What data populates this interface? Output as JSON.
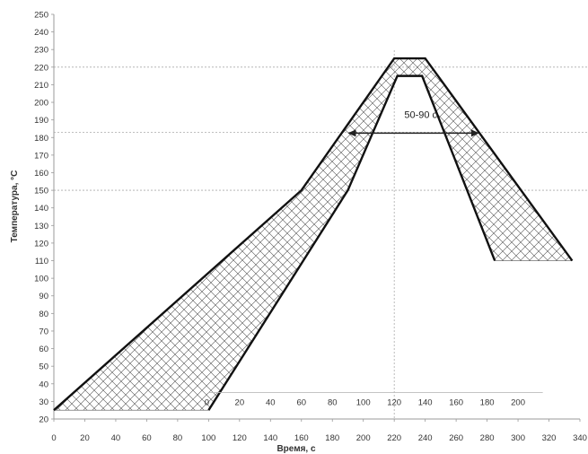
{
  "chart_data": {
    "type": "area",
    "title": "",
    "xlabel": "Время, с",
    "ylabel": "Температура, °С",
    "xlim": [
      0,
      340
    ],
    "ylim": [
      20,
      250
    ],
    "x_ticks": [
      0,
      20,
      40,
      60,
      80,
      100,
      120,
      140,
      160,
      180,
      200,
      220,
      240,
      260,
      280,
      300,
      320,
      340
    ],
    "y_ticks": [
      20,
      30,
      40,
      50,
      60,
      70,
      80,
      90,
      100,
      110,
      120,
      130,
      140,
      150,
      160,
      170,
      180,
      190,
      200,
      210,
      220,
      230,
      240,
      250
    ],
    "series": [
      {
        "role": "upper-boundary",
        "points": [
          [
            0,
            25
          ],
          [
            160,
            150
          ],
          [
            220,
            225
          ],
          [
            240,
            225
          ],
          [
            335,
            110
          ]
        ]
      },
      {
        "role": "lower-boundary",
        "points": [
          [
            100,
            25
          ],
          [
            190,
            150
          ],
          [
            222,
            215
          ],
          [
            238,
            215
          ],
          [
            285,
            110
          ]
        ]
      }
    ],
    "reference_lines": {
      "horizontal": [
        220,
        183,
        150
      ],
      "vertical": [
        220
      ]
    },
    "annotation": {
      "text": "50-90 с",
      "y": 183,
      "x_from": 190,
      "x_to": 275
    },
    "inset_axis": {
      "x_start": 100,
      "x_end": 316,
      "x_offset": 100,
      "ticks": [
        "0",
        "20",
        "40",
        "60",
        "80",
        "100",
        "120",
        "140",
        "160",
        "180",
        "200"
      ]
    },
    "colors": {
      "line": "#111111",
      "hatch": "#555555",
      "gridline": "#aaaaaa",
      "text": "#333333"
    }
  }
}
